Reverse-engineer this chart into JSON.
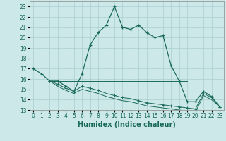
{
  "xlabel": "Humidex (Indice chaleur)",
  "background_color": "#cce8e8",
  "grid_color": "#aacece",
  "line_color": "#1a6a5a",
  "xlim": [
    -0.5,
    23.5
  ],
  "ylim": [
    13,
    23.5
  ],
  "x_ticks": [
    0,
    1,
    2,
    3,
    4,
    5,
    6,
    7,
    8,
    9,
    10,
    11,
    12,
    13,
    14,
    15,
    16,
    17,
    18,
    19,
    20,
    21,
    22,
    23
  ],
  "y_ticks": [
    13,
    14,
    15,
    16,
    17,
    18,
    19,
    20,
    21,
    22,
    23
  ],
  "series1_x": [
    0,
    1,
    2,
    3,
    4,
    5,
    6,
    7,
    8,
    9,
    10,
    11,
    12,
    13,
    14,
    15,
    16,
    17,
    18,
    19,
    20,
    21,
    22,
    23
  ],
  "series1_y": [
    17.0,
    16.5,
    15.8,
    15.8,
    15.3,
    14.8,
    16.5,
    19.3,
    20.5,
    21.2,
    23.0,
    21.0,
    20.8,
    21.2,
    20.5,
    20.0,
    20.2,
    17.3,
    15.8,
    13.8,
    13.8,
    14.8,
    14.3,
    13.3
  ],
  "series2_x": [
    2,
    3,
    4,
    5,
    6,
    7,
    8,
    9,
    10,
    11,
    12,
    13,
    14,
    15,
    16,
    17,
    18,
    19,
    20,
    21,
    22,
    23
  ],
  "series2_y": [
    15.8,
    15.5,
    15.1,
    14.8,
    15.3,
    15.1,
    14.9,
    14.6,
    14.4,
    14.2,
    14.1,
    13.9,
    13.7,
    13.6,
    13.5,
    13.4,
    13.3,
    13.2,
    13.1,
    14.6,
    14.2,
    13.3
  ],
  "series3_x": [
    2,
    3,
    4,
    5,
    6,
    7,
    8,
    9,
    10,
    11,
    12,
    13,
    14,
    15,
    16,
    17,
    18,
    19,
    20,
    21,
    22,
    23
  ],
  "series3_y": [
    15.8,
    15.3,
    14.9,
    14.6,
    15.0,
    14.8,
    14.6,
    14.3,
    14.1,
    13.9,
    13.8,
    13.6,
    13.4,
    13.3,
    13.2,
    13.1,
    13.0,
    12.9,
    12.8,
    14.4,
    14.0,
    13.3
  ],
  "series4_x": [
    2,
    19
  ],
  "series4_y": [
    15.8,
    15.8
  ],
  "tick_fontsize": 5.5,
  "xlabel_fontsize": 7
}
